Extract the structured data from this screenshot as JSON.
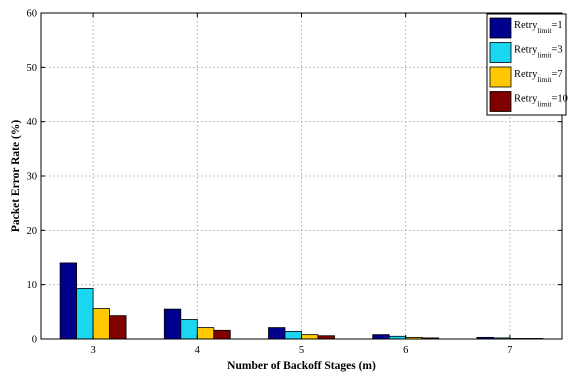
{
  "chart_data": {
    "type": "bar",
    "xlabel": "Number of Backoff Stages (m)",
    "ylabel": "Packet Error Rate (%)",
    "categories": [
      "3",
      "4",
      "5",
      "6",
      "7"
    ],
    "ylim": [
      0,
      60
    ],
    "yticks": [
      "0",
      "10",
      "20",
      "30",
      "40",
      "50",
      "60"
    ],
    "grid": true,
    "legend_position": "top-right",
    "series": [
      {
        "name_main": "Retry",
        "name_sub": "limit",
        "name_suffix": "=1",
        "color": "#00008f",
        "values": [
          14.0,
          5.5,
          2.1,
          0.8,
          0.3
        ]
      },
      {
        "name_main": "Retry",
        "name_sub": "limit",
        "name_suffix": "=3",
        "color": "#1ad6f0",
        "values": [
          9.3,
          3.6,
          1.4,
          0.5,
          0.2
        ]
      },
      {
        "name_main": "Retry",
        "name_sub": "limit",
        "name_suffix": "=7",
        "color": "#ffc800",
        "values": [
          5.6,
          2.1,
          0.8,
          0.3,
          0.1
        ]
      },
      {
        "name_main": "Retry",
        "name_sub": "limit",
        "name_suffix": "=10",
        "color": "#800000",
        "values": [
          4.3,
          1.6,
          0.6,
          0.2,
          0.1
        ]
      }
    ]
  }
}
